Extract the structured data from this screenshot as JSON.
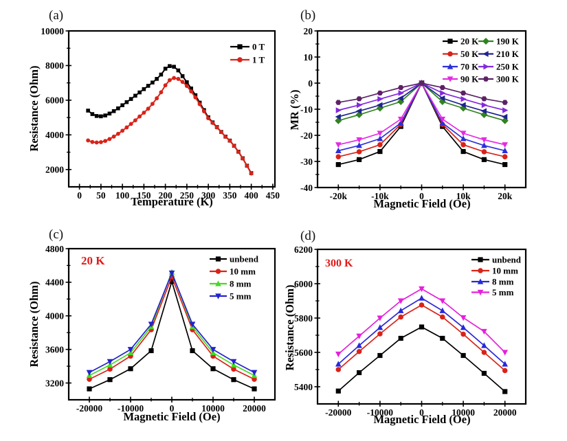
{
  "figure_title": "",
  "annotation_color": "#e01b1b",
  "chart_data": [
    {
      "key": "a",
      "tag": "(a)",
      "type": "line",
      "xlabel": "Temperature (K)",
      "ylabel": "Resistance (Ohm)",
      "annotation": null,
      "xlim": [
        -25,
        455
      ],
      "ylim": [
        1000,
        10000
      ],
      "xticks": [
        0,
        50,
        100,
        150,
        200,
        250,
        300,
        350,
        400,
        450
      ],
      "xtick_labels": [
        "0",
        "50",
        "100",
        "150",
        "200",
        "250",
        "300",
        "350",
        "400",
        "450"
      ],
      "yticks": [
        2000,
        4000,
        6000,
        8000,
        10000
      ],
      "ytick_labels": [
        "2000",
        "4000",
        "6000",
        "8000",
        "10000"
      ],
      "xminor": 25,
      "yminor": 1000,
      "grid": false,
      "legend_position": "top-right-inside",
      "x": [
        20,
        30,
        40,
        50,
        60,
        70,
        80,
        90,
        100,
        110,
        120,
        130,
        140,
        150,
        160,
        170,
        180,
        190,
        200,
        210,
        220,
        230,
        240,
        250,
        260,
        270,
        280,
        290,
        300,
        310,
        320,
        330,
        340,
        350,
        360,
        370,
        380,
        390,
        400
      ],
      "series": [
        {
          "name": "0 T",
          "color": "#000000",
          "marker": "square",
          "y": [
            5400,
            5200,
            5090,
            5070,
            5120,
            5230,
            5370,
            5530,
            5710,
            5890,
            6070,
            6260,
            6450,
            6640,
            6830,
            7020,
            7230,
            7480,
            7820,
            7970,
            7930,
            7720,
            7390,
            7040,
            6680,
            6290,
            5860,
            5430,
            5010,
            4720,
            4450,
            4170,
            3900,
            3670,
            3370,
            3030,
            2650,
            2220,
            1790
          ]
        },
        {
          "name": "1 T",
          "color": "#d92318",
          "marker": "circle",
          "y": [
            3680,
            3590,
            3560,
            3580,
            3650,
            3760,
            3900,
            4060,
            4240,
            4430,
            4630,
            4840,
            5060,
            5280,
            5510,
            5790,
            6110,
            6460,
            6860,
            7160,
            7280,
            7230,
            7060,
            6820,
            6510,
            6160,
            5770,
            5360,
            4960,
            4690,
            4430,
            4160,
            3890,
            3660,
            3360,
            3020,
            2640,
            2210,
            1770
          ]
        }
      ]
    },
    {
      "key": "b",
      "tag": "(b)",
      "type": "line",
      "xlabel": "Magnetic Field (Oe)",
      "ylabel": "MR (%)",
      "annotation": null,
      "xlim": [
        -25000,
        25000
      ],
      "ylim": [
        -40,
        20
      ],
      "xticks": [
        -20000,
        -10000,
        0,
        10000,
        20000
      ],
      "xtick_labels": [
        "-20k",
        "-10k",
        "0",
        "10k",
        "20k"
      ],
      "yticks": [
        -40,
        -30,
        -20,
        -10,
        0,
        10,
        20
      ],
      "ytick_labels": [
        "-40",
        "-30",
        "-20",
        "-10",
        "0",
        "10",
        "20"
      ],
      "xminor": 5000,
      "yminor": 5,
      "grid": false,
      "legend_position": "top-right-inside-2col",
      "x": [
        -20000,
        -15000,
        -10000,
        -5000,
        0,
        5000,
        10000,
        15000,
        20000
      ],
      "series": [
        {
          "name": "20 K",
          "color": "#000000",
          "marker": "square",
          "y": [
            -31.2,
            -29.3,
            -26.2,
            -16.6,
            0,
            -16.6,
            -26.2,
            -29.3,
            -31.2
          ]
        },
        {
          "name": "50 K",
          "color": "#d92318",
          "marker": "circle",
          "y": [
            -28.2,
            -26.3,
            -23.6,
            -15.8,
            0,
            -15.8,
            -23.6,
            -26.3,
            -28.2
          ]
        },
        {
          "name": "70 K",
          "color": "#2b2fd9",
          "marker": "triangle-up",
          "y": [
            -25.9,
            -23.9,
            -21.3,
            -15.3,
            0,
            -15.3,
            -21.3,
            -23.9,
            -25.9
          ]
        },
        {
          "name": "90 K",
          "color": "#e32be3",
          "marker": "triangle-down",
          "y": [
            -23.6,
            -21.7,
            -19.2,
            -13.8,
            0,
            -13.8,
            -19.2,
            -21.7,
            -23.6
          ]
        },
        {
          "name": "190 K",
          "color": "#31821f",
          "marker": "diamond",
          "y": [
            -14.4,
            -12.1,
            -9.6,
            -7.1,
            0,
            -7.1,
            -9.6,
            -12.1,
            -14.4
          ]
        },
        {
          "name": "210 K",
          "color": "#1f2390",
          "marker": "triangle-left",
          "y": [
            -12.9,
            -10.7,
            -8.4,
            -5.8,
            0,
            -5.8,
            -8.4,
            -10.7,
            -12.9
          ]
        },
        {
          "name": "250 K",
          "color": "#8428dd",
          "marker": "triangle-right",
          "y": [
            -10.4,
            -8.4,
            -6.1,
            -3.8,
            0,
            -3.8,
            -6.1,
            -8.4,
            -10.4
          ]
        },
        {
          "name": "300 K",
          "color": "#5c2166",
          "marker": "hexagon",
          "y": [
            -7.4,
            -6.0,
            -3.8,
            -1.7,
            0,
            -1.7,
            -3.8,
            -6.0,
            -7.4
          ]
        }
      ]
    },
    {
      "key": "c",
      "tag": "(c)",
      "type": "line",
      "xlabel": "Magnetic Field (Oe)",
      "ylabel": "Resistance (Ohm)",
      "annotation": {
        "text": "20 K",
        "color": "#e01b1b"
      },
      "xlim": [
        -25000,
        25000
      ],
      "ylim": [
        3000,
        4800
      ],
      "xticks": [
        -20000,
        -10000,
        0,
        10000,
        20000
      ],
      "xtick_labels": [
        "-20000",
        "-10000",
        "0",
        "10000",
        "20000"
      ],
      "yticks": [
        3200,
        3600,
        4000,
        4400,
        4800
      ],
      "ytick_labels": [
        "3200",
        "3600",
        "4000",
        "4400",
        "4800"
      ],
      "xminor": 5000,
      "yminor": 200,
      "grid": false,
      "legend_position": "top-right-inside",
      "x": [
        -20000,
        -15000,
        -10000,
        -5000,
        0,
        5000,
        10000,
        15000,
        20000
      ],
      "series": [
        {
          "name": "unbend",
          "color": "#000000",
          "marker": "square",
          "y": [
            3130,
            3240,
            3370,
            3585,
            4410,
            3585,
            3370,
            3240,
            3130
          ]
        },
        {
          "name": "10 mm",
          "color": "#d92318",
          "marker": "circle",
          "y": [
            3245,
            3365,
            3520,
            3835,
            4465,
            3835,
            3520,
            3365,
            3245
          ]
        },
        {
          "name": "8 mm",
          "color": "#46d926",
          "marker": "triangle-up",
          "y": [
            3290,
            3415,
            3560,
            3870,
            4520,
            3870,
            3560,
            3415,
            3290
          ]
        },
        {
          "name": "5 mm",
          "color": "#2323cc",
          "marker": "triangle-down",
          "y": [
            3325,
            3455,
            3600,
            3900,
            4510,
            3900,
            3600,
            3455,
            3325
          ]
        }
      ]
    },
    {
      "key": "d",
      "tag": "(d)",
      "type": "line",
      "xlabel": "Magnetic Field (Oe)",
      "ylabel": "Resistance (Ohm)",
      "annotation": {
        "text": "300 K",
        "color": "#e01b1b"
      },
      "xlim": [
        -25000,
        25000
      ],
      "ylim": [
        5300,
        6200
      ],
      "xticks": [
        -20000,
        -10000,
        0,
        10000,
        20000
      ],
      "xtick_labels": [
        "-20000",
        "-10000",
        "0",
        "10000",
        "20000"
      ],
      "yticks": [
        5400,
        5600,
        5800,
        6000,
        6200
      ],
      "ytick_labels": [
        "5400",
        "5600",
        "5800",
        "6000",
        "6200"
      ],
      "xminor": 5000,
      "yminor": 100,
      "grid": false,
      "legend_position": "top-right-inside",
      "x": [
        -20000,
        -15000,
        -10000,
        -5000,
        0,
        5000,
        10000,
        15000,
        20000
      ],
      "series": [
        {
          "name": "unbend",
          "color": "#000000",
          "marker": "square",
          "y": [
            5375,
            5482,
            5582,
            5682,
            5748,
            5682,
            5582,
            5478,
            5372
          ]
        },
        {
          "name": "10 mm",
          "color": "#d92318",
          "marker": "circle",
          "y": [
            5500,
            5605,
            5708,
            5806,
            5876,
            5806,
            5706,
            5600,
            5494
          ]
        },
        {
          "name": "8 mm",
          "color": "#2828d9",
          "marker": "triangle-up",
          "y": [
            5532,
            5640,
            5745,
            5843,
            5916,
            5843,
            5745,
            5640,
            5532
          ]
        },
        {
          "name": "5 mm",
          "color": "#e620dc",
          "marker": "triangle-down",
          "y": [
            5590,
            5695,
            5800,
            5900,
            5970,
            5900,
            5802,
            5722,
            5600
          ]
        }
      ]
    }
  ]
}
